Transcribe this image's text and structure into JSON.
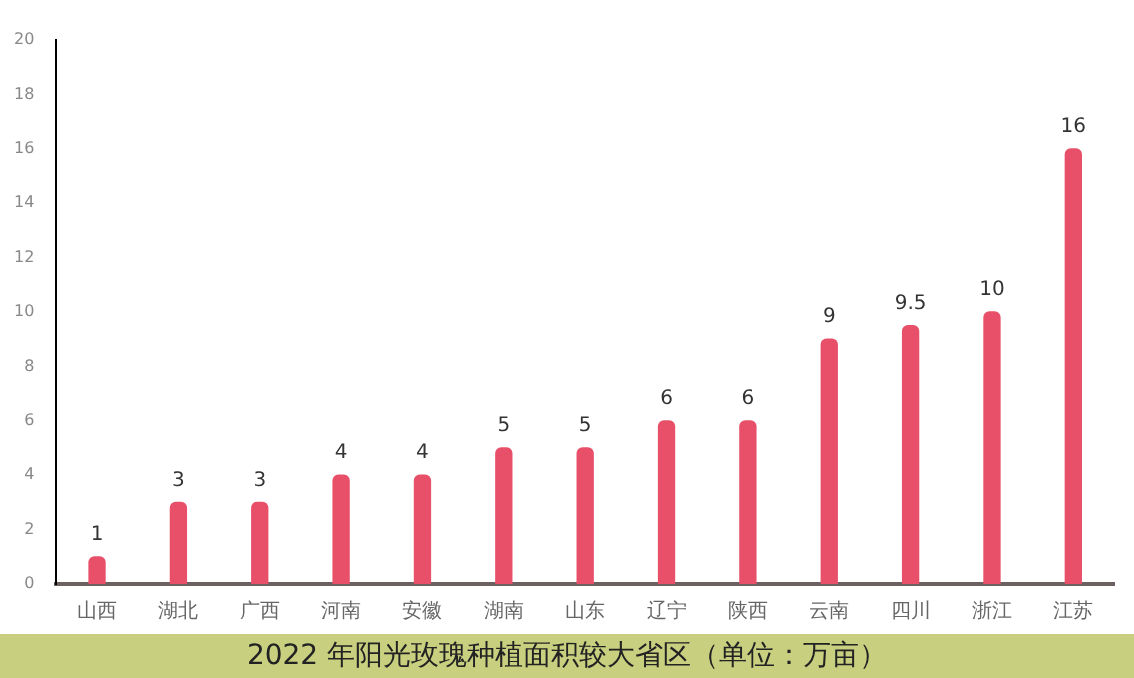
{
  "chart_data": {
    "type": "bar",
    "title": "2022 年阳光玫瑰种植面积较大省区（单位：万亩）",
    "categories": [
      "山西",
      "湖北",
      "广西",
      "河南",
      "安徽",
      "湖南",
      "山东",
      "辽宁",
      "陕西",
      "云南",
      "四川",
      "浙江",
      "江苏"
    ],
    "values": [
      1,
      3,
      3,
      4,
      4,
      5,
      5,
      6,
      6,
      9,
      9.5,
      10,
      16
    ],
    "color": "#e8506a",
    "ylim": [
      0,
      20
    ],
    "yticks": [
      0,
      2,
      4,
      6,
      8,
      10,
      12,
      14,
      16,
      18,
      20
    ],
    "grid": false,
    "legend": false,
    "data_labels": true
  }
}
